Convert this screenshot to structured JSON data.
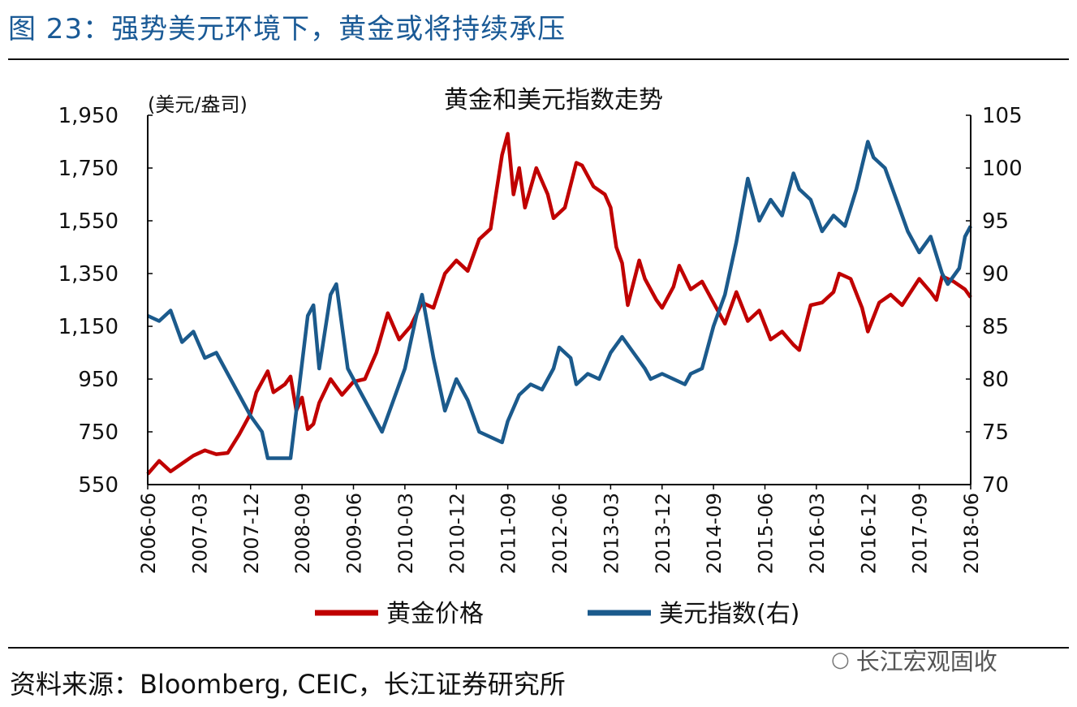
{
  "figure": {
    "title": "图 23：强势美元环境下，黄金或将持续承压",
    "source": "资料来源：Bloomberg, CEIC，长江证券研究所",
    "watermark": "长江宏观固收",
    "watermark_icon": "wechat-icon"
  },
  "colors": {
    "gold": "#c00000",
    "usd": "#1b5a8c",
    "title": "#1a5a96",
    "axis": "#000000"
  },
  "chart_data": {
    "type": "line",
    "title": "黄金和美元指数走势",
    "y_left_unit": "(美元/盎司)",
    "y_left": {
      "min": 550,
      "max": 1950,
      "ticks": [
        "550",
        "750",
        "950",
        "1,150",
        "1,350",
        "1,550",
        "1,750",
        "1,950"
      ]
    },
    "y_right": {
      "min": 70,
      "max": 105,
      "ticks": [
        "70",
        "75",
        "80",
        "85",
        "90",
        "95",
        "100",
        "105"
      ]
    },
    "x_range": [
      "2006-06",
      "2018-06"
    ],
    "x_ticks": [
      "2006-06",
      "2007-03",
      "2007-12",
      "2008-09",
      "2009-06",
      "2010-03",
      "2010-12",
      "2011-09",
      "2012-06",
      "2013-03",
      "2013-12",
      "2014-09",
      "2015-06",
      "2016-03",
      "2016-12",
      "2017-09",
      "2018-06"
    ],
    "legend": {
      "placement": "bottom"
    },
    "series": [
      {
        "name": "黄金价格",
        "axis": "left",
        "points": [
          [
            "2006-06",
            590
          ],
          [
            "2006-08",
            640
          ],
          [
            "2006-10",
            600
          ],
          [
            "2006-12",
            630
          ],
          [
            "2007-02",
            660
          ],
          [
            "2007-04",
            680
          ],
          [
            "2007-06",
            665
          ],
          [
            "2007-08",
            670
          ],
          [
            "2007-10",
            740
          ],
          [
            "2007-12",
            820
          ],
          [
            "2008-01",
            900
          ],
          [
            "2008-03",
            980
          ],
          [
            "2008-04",
            900
          ],
          [
            "2008-06",
            930
          ],
          [
            "2008-07",
            960
          ],
          [
            "2008-08",
            830
          ],
          [
            "2008-09",
            880
          ],
          [
            "2008-10",
            760
          ],
          [
            "2008-11",
            780
          ],
          [
            "2008-12",
            860
          ],
          [
            "2009-02",
            950
          ],
          [
            "2009-04",
            890
          ],
          [
            "2009-06",
            940
          ],
          [
            "2009-08",
            950
          ],
          [
            "2009-10",
            1050
          ],
          [
            "2009-12",
            1200
          ],
          [
            "2010-02",
            1100
          ],
          [
            "2010-04",
            1150
          ],
          [
            "2010-06",
            1240
          ],
          [
            "2010-08",
            1220
          ],
          [
            "2010-10",
            1350
          ],
          [
            "2010-12",
            1400
          ],
          [
            "2011-02",
            1360
          ],
          [
            "2011-04",
            1480
          ],
          [
            "2011-06",
            1520
          ],
          [
            "2011-08",
            1800
          ],
          [
            "2011-09",
            1880
          ],
          [
            "2011-10",
            1650
          ],
          [
            "2011-11",
            1750
          ],
          [
            "2011-12",
            1600
          ],
          [
            "2012-02",
            1750
          ],
          [
            "2012-04",
            1650
          ],
          [
            "2012-05",
            1560
          ],
          [
            "2012-07",
            1600
          ],
          [
            "2012-09",
            1770
          ],
          [
            "2012-10",
            1760
          ],
          [
            "2012-12",
            1680
          ],
          [
            "2013-02",
            1650
          ],
          [
            "2013-03",
            1600
          ],
          [
            "2013-04",
            1450
          ],
          [
            "2013-05",
            1390
          ],
          [
            "2013-06",
            1230
          ],
          [
            "2013-08",
            1400
          ],
          [
            "2013-09",
            1330
          ],
          [
            "2013-11",
            1250
          ],
          [
            "2013-12",
            1220
          ],
          [
            "2014-02",
            1300
          ],
          [
            "2014-03",
            1380
          ],
          [
            "2014-05",
            1290
          ],
          [
            "2014-07",
            1320
          ],
          [
            "2014-09",
            1240
          ],
          [
            "2014-11",
            1160
          ],
          [
            "2015-01",
            1280
          ],
          [
            "2015-03",
            1170
          ],
          [
            "2015-05",
            1210
          ],
          [
            "2015-07",
            1100
          ],
          [
            "2015-09",
            1130
          ],
          [
            "2015-11",
            1080
          ],
          [
            "2015-12",
            1060
          ],
          [
            "2016-02",
            1230
          ],
          [
            "2016-04",
            1240
          ],
          [
            "2016-06",
            1280
          ],
          [
            "2016-07",
            1350
          ],
          [
            "2016-09",
            1330
          ],
          [
            "2016-11",
            1220
          ],
          [
            "2016-12",
            1130
          ],
          [
            "2017-02",
            1240
          ],
          [
            "2017-04",
            1270
          ],
          [
            "2017-06",
            1230
          ],
          [
            "2017-09",
            1330
          ],
          [
            "2017-11",
            1280
          ],
          [
            "2017-12",
            1250
          ],
          [
            "2018-01",
            1340
          ],
          [
            "2018-03",
            1320
          ],
          [
            "2018-05",
            1290
          ],
          [
            "2018-06",
            1260
          ]
        ]
      },
      {
        "name": "美元指数(右)",
        "axis": "right",
        "points": [
          [
            "2006-06",
            86
          ],
          [
            "2006-08",
            85.5
          ],
          [
            "2006-10",
            86.5
          ],
          [
            "2006-12",
            83.5
          ],
          [
            "2007-02",
            84.5
          ],
          [
            "2007-04",
            82
          ],
          [
            "2007-06",
            82.5
          ],
          [
            "2007-08",
            80.5
          ],
          [
            "2007-10",
            78.5
          ],
          [
            "2007-12",
            76.5
          ],
          [
            "2008-02",
            75
          ],
          [
            "2008-03",
            72.5
          ],
          [
            "2008-05",
            72.5
          ],
          [
            "2008-07",
            72.5
          ],
          [
            "2008-08",
            77
          ],
          [
            "2008-10",
            86
          ],
          [
            "2008-11",
            87
          ],
          [
            "2008-12",
            81
          ],
          [
            "2009-02",
            88
          ],
          [
            "2009-03",
            89
          ],
          [
            "2009-05",
            81
          ],
          [
            "2009-07",
            79
          ],
          [
            "2009-09",
            77
          ],
          [
            "2009-11",
            75
          ],
          [
            "2010-01",
            78
          ],
          [
            "2010-03",
            81
          ],
          [
            "2010-05",
            86
          ],
          [
            "2010-06",
            88
          ],
          [
            "2010-08",
            82
          ],
          [
            "2010-10",
            77
          ],
          [
            "2010-12",
            80
          ],
          [
            "2011-02",
            78
          ],
          [
            "2011-04",
            75
          ],
          [
            "2011-06",
            74.5
          ],
          [
            "2011-08",
            74
          ],
          [
            "2011-09",
            76
          ],
          [
            "2011-11",
            78.5
          ],
          [
            "2012-01",
            79.5
          ],
          [
            "2012-03",
            79
          ],
          [
            "2012-05",
            81
          ],
          [
            "2012-06",
            83
          ],
          [
            "2012-08",
            82
          ],
          [
            "2012-09",
            79.5
          ],
          [
            "2012-11",
            80.5
          ],
          [
            "2013-01",
            80
          ],
          [
            "2013-03",
            82.5
          ],
          [
            "2013-05",
            84
          ],
          [
            "2013-07",
            82.5
          ],
          [
            "2013-09",
            81
          ],
          [
            "2013-10",
            80
          ],
          [
            "2013-12",
            80.5
          ],
          [
            "2014-02",
            80
          ],
          [
            "2014-04",
            79.5
          ],
          [
            "2014-05",
            80.5
          ],
          [
            "2014-07",
            81
          ],
          [
            "2014-09",
            85
          ],
          [
            "2014-11",
            88
          ],
          [
            "2015-01",
            93
          ],
          [
            "2015-03",
            99
          ],
          [
            "2015-05",
            95
          ],
          [
            "2015-07",
            97
          ],
          [
            "2015-09",
            95.5
          ],
          [
            "2015-11",
            99.5
          ],
          [
            "2015-12",
            98
          ],
          [
            "2016-02",
            97
          ],
          [
            "2016-04",
            94
          ],
          [
            "2016-06",
            95.5
          ],
          [
            "2016-08",
            94.5
          ],
          [
            "2016-10",
            98
          ],
          [
            "2016-12",
            102.5
          ],
          [
            "2017-01",
            101
          ],
          [
            "2017-03",
            100
          ],
          [
            "2017-05",
            97
          ],
          [
            "2017-07",
            94
          ],
          [
            "2017-09",
            92
          ],
          [
            "2017-11",
            93.5
          ],
          [
            "2018-01",
            90
          ],
          [
            "2018-02",
            89
          ],
          [
            "2018-04",
            90.5
          ],
          [
            "2018-05",
            93.5
          ],
          [
            "2018-06",
            94.5
          ]
        ]
      }
    ]
  }
}
